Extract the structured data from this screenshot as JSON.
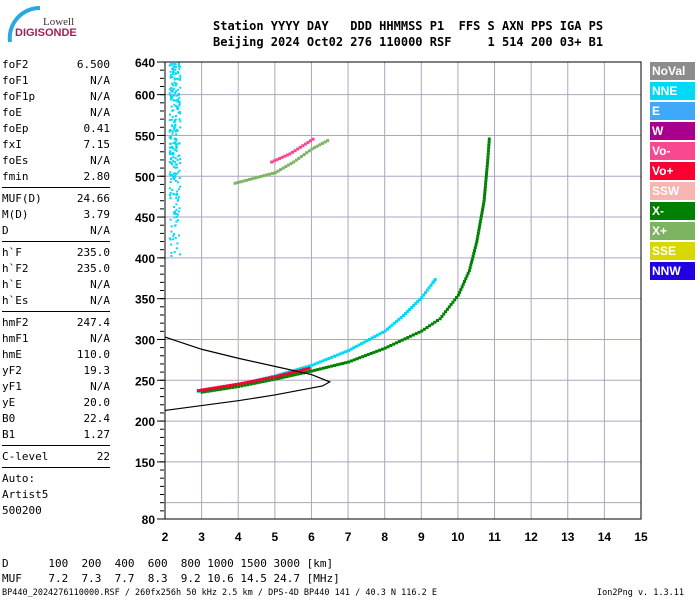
{
  "logo": {
    "line1": "Lowell",
    "line2": "DIGISONDE"
  },
  "header": {
    "row1": "Station YYYY DAY   DDD HHMMSS P1  FFS S AXN PPS IGA PS",
    "row2": "Beijing 2024 Oct02 276 110000 RSF     1 514 200 03+ B1"
  },
  "params": [
    [
      {
        "k": "foF2",
        "v": "6.500"
      },
      {
        "k": "foF1",
        "v": "N/A"
      },
      {
        "k": "foF1p",
        "v": "N/A"
      },
      {
        "k": "foE",
        "v": "N/A"
      },
      {
        "k": "foEp",
        "v": "0.41"
      },
      {
        "k": "fxI",
        "v": "7.15"
      },
      {
        "k": "foEs",
        "v": "N/A"
      },
      {
        "k": "fmin",
        "v": "2.80"
      }
    ],
    [
      {
        "k": "MUF(D)",
        "v": "24.66"
      },
      {
        "k": "M(D)",
        "v": "3.79"
      },
      {
        "k": "D",
        "v": "N/A"
      }
    ],
    [
      {
        "k": "h`F",
        "v": "235.0"
      },
      {
        "k": "h`F2",
        "v": "235.0"
      },
      {
        "k": "h`E",
        "v": "N/A"
      },
      {
        "k": "h`Es",
        "v": "N/A"
      }
    ],
    [
      {
        "k": "hmF2",
        "v": "247.4"
      },
      {
        "k": "hmF1",
        "v": "N/A"
      },
      {
        "k": "hmE",
        "v": "110.0"
      },
      {
        "k": "yF2",
        "v": "19.3"
      },
      {
        "k": "yF1",
        "v": "N/A"
      },
      {
        "k": "yE",
        "v": "20.0"
      },
      {
        "k": "B0",
        "v": "22.4"
      },
      {
        "k": "B1",
        "v": "1.27"
      }
    ],
    [
      {
        "k": "C-level",
        "v": "22"
      }
    ]
  ],
  "auto": {
    "l1": "Auto:",
    "l2": "Artist5",
    "l3": "500200"
  },
  "muf_table": {
    "row1": "D      100  200  400  600  800 1000 1500 3000 [km]",
    "row2": "MUF    7.2  7.3  7.7  8.3  9.2 10.6 14.5 24.7 [MHz]"
  },
  "footer": {
    "left": "BP440_2024276110000.RSF / 260fx256h 50 kHz 2.5 km / DPS-4D BP440 141 / 40.3 N 116.2 E",
    "right": "Ion2Png v. 1.3.11"
  },
  "legend": [
    {
      "label": "NoVal",
      "color": "#8c8c8c"
    },
    {
      "label": "NNE",
      "color": "#00d8f8"
    },
    {
      "label": "E",
      "color": "#40a8f8"
    },
    {
      "label": "W",
      "color": "#a8008c"
    },
    {
      "label": "Vo-",
      "color": "#f84890"
    },
    {
      "label": "Vo+",
      "color": "#f80030"
    },
    {
      "label": "SSW",
      "color": "#f8b4b0"
    },
    {
      "label": "X-",
      "color": "#008000"
    },
    {
      "label": "X+",
      "color": "#7cb464"
    },
    {
      "label": "SSE",
      "color": "#d8d800"
    },
    {
      "label": "NNW",
      "color": "#2000e0"
    }
  ],
  "chart_data": {
    "type": "scatter",
    "xlim": [
      2,
      15
    ],
    "ylim": [
      80,
      640
    ],
    "xticks": [
      "2",
      "3",
      "4",
      "5",
      "6",
      "7",
      "8",
      "9",
      "10",
      "11",
      "12",
      "13",
      "14",
      "15"
    ],
    "yticks": [
      "80",
      "150",
      "200",
      "250",
      "300",
      "350",
      "400",
      "450",
      "500",
      "550",
      "600",
      "640"
    ],
    "grid": true,
    "series": [
      {
        "direction": "NNE",
        "color": "#00d8f8",
        "points": [
          [
            2.9,
            237
          ],
          [
            4,
            245
          ],
          [
            5,
            256
          ],
          [
            6,
            269
          ],
          [
            7,
            287
          ],
          [
            8,
            311
          ],
          [
            8.5,
            330
          ],
          [
            9,
            352
          ],
          [
            9.3,
            370
          ],
          [
            9.4,
            376
          ]
        ]
      },
      {
        "direction": "X-",
        "color": "#008000",
        "points": [
          [
            3,
            236
          ],
          [
            4,
            243
          ],
          [
            5,
            252
          ],
          [
            6,
            262
          ],
          [
            7,
            273
          ],
          [
            8,
            290
          ],
          [
            9,
            311
          ],
          [
            9.5,
            326
          ],
          [
            10,
            355
          ],
          [
            10.3,
            385
          ],
          [
            10.5,
            420
          ],
          [
            10.7,
            470
          ],
          [
            10.8,
            520
          ],
          [
            10.85,
            550
          ]
        ]
      },
      {
        "direction": "Vo+",
        "color": "#f80030",
        "points": [
          [
            2.9,
            238
          ],
          [
            4,
            246
          ],
          [
            5,
            255
          ],
          [
            6,
            266
          ]
        ]
      },
      {
        "direction": "X+",
        "color": "#7cb464",
        "points": [
          [
            3.9,
            492
          ],
          [
            5,
            505
          ],
          [
            5.5,
            518
          ],
          [
            6,
            534
          ],
          [
            6.5,
            546
          ]
        ]
      },
      {
        "direction": "Vo-",
        "color": "#f84890",
        "points": [
          [
            4.9,
            518
          ],
          [
            5.4,
            528
          ],
          [
            6.1,
            548
          ]
        ]
      }
    ],
    "noise": {
      "direction": "NNE",
      "color": "#00d8f8",
      "freq": [
        2.1,
        2.4
      ],
      "height": [
        400,
        640
      ]
    },
    "profile": {
      "color": "#000000",
      "points": [
        [
          2,
          303
        ],
        [
          3,
          288
        ],
        [
          4,
          277
        ],
        [
          5,
          267
        ],
        [
          6,
          257
        ],
        [
          6.5,
          248
        ],
        [
          6.3,
          243
        ],
        [
          5,
          232
        ],
        [
          4,
          225
        ],
        [
          3,
          219
        ],
        [
          2,
          213
        ]
      ]
    }
  }
}
